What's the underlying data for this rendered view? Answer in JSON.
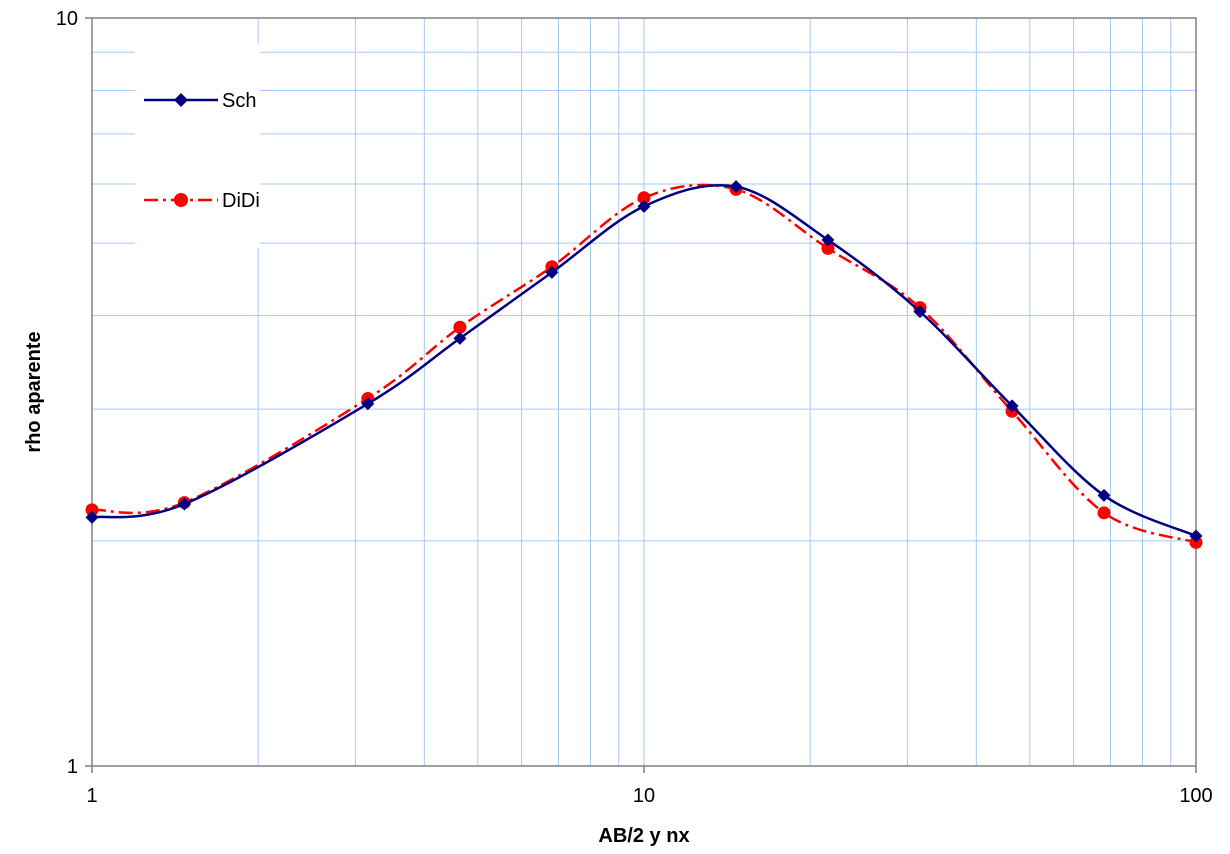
{
  "chart_data": {
    "type": "line",
    "xlabel": "AB/2 y  nx",
    "ylabel": "rho aparente",
    "x_scale": "log",
    "y_scale": "log",
    "xlim": [
      1,
      100
    ],
    "ylim": [
      1,
      10
    ],
    "x_ticks": [
      "1",
      "10",
      "100"
    ],
    "y_ticks": [
      "1",
      "10"
    ],
    "grid": true,
    "legend_position": "top-left",
    "x": [
      1,
      1.47,
      3.16,
      4.64,
      6.81,
      10,
      14.68,
      21.54,
      31.62,
      46.42,
      68.13,
      100
    ],
    "series": [
      {
        "name": "Sch",
        "color": "#000080",
        "marker": "diamond",
        "line_style": "solid",
        "values": [
          2.15,
          2.24,
          3.05,
          3.73,
          4.57,
          5.6,
          5.95,
          5.05,
          4.05,
          3.03,
          2.3,
          2.03
        ]
      },
      {
        "name": "DiDi",
        "color": "#ff0000",
        "marker": "circle",
        "line_style": "dash-dot",
        "values": [
          2.2,
          2.25,
          3.1,
          3.86,
          4.65,
          5.75,
          5.9,
          4.92,
          4.1,
          2.98,
          2.18,
          1.99
        ]
      }
    ]
  }
}
